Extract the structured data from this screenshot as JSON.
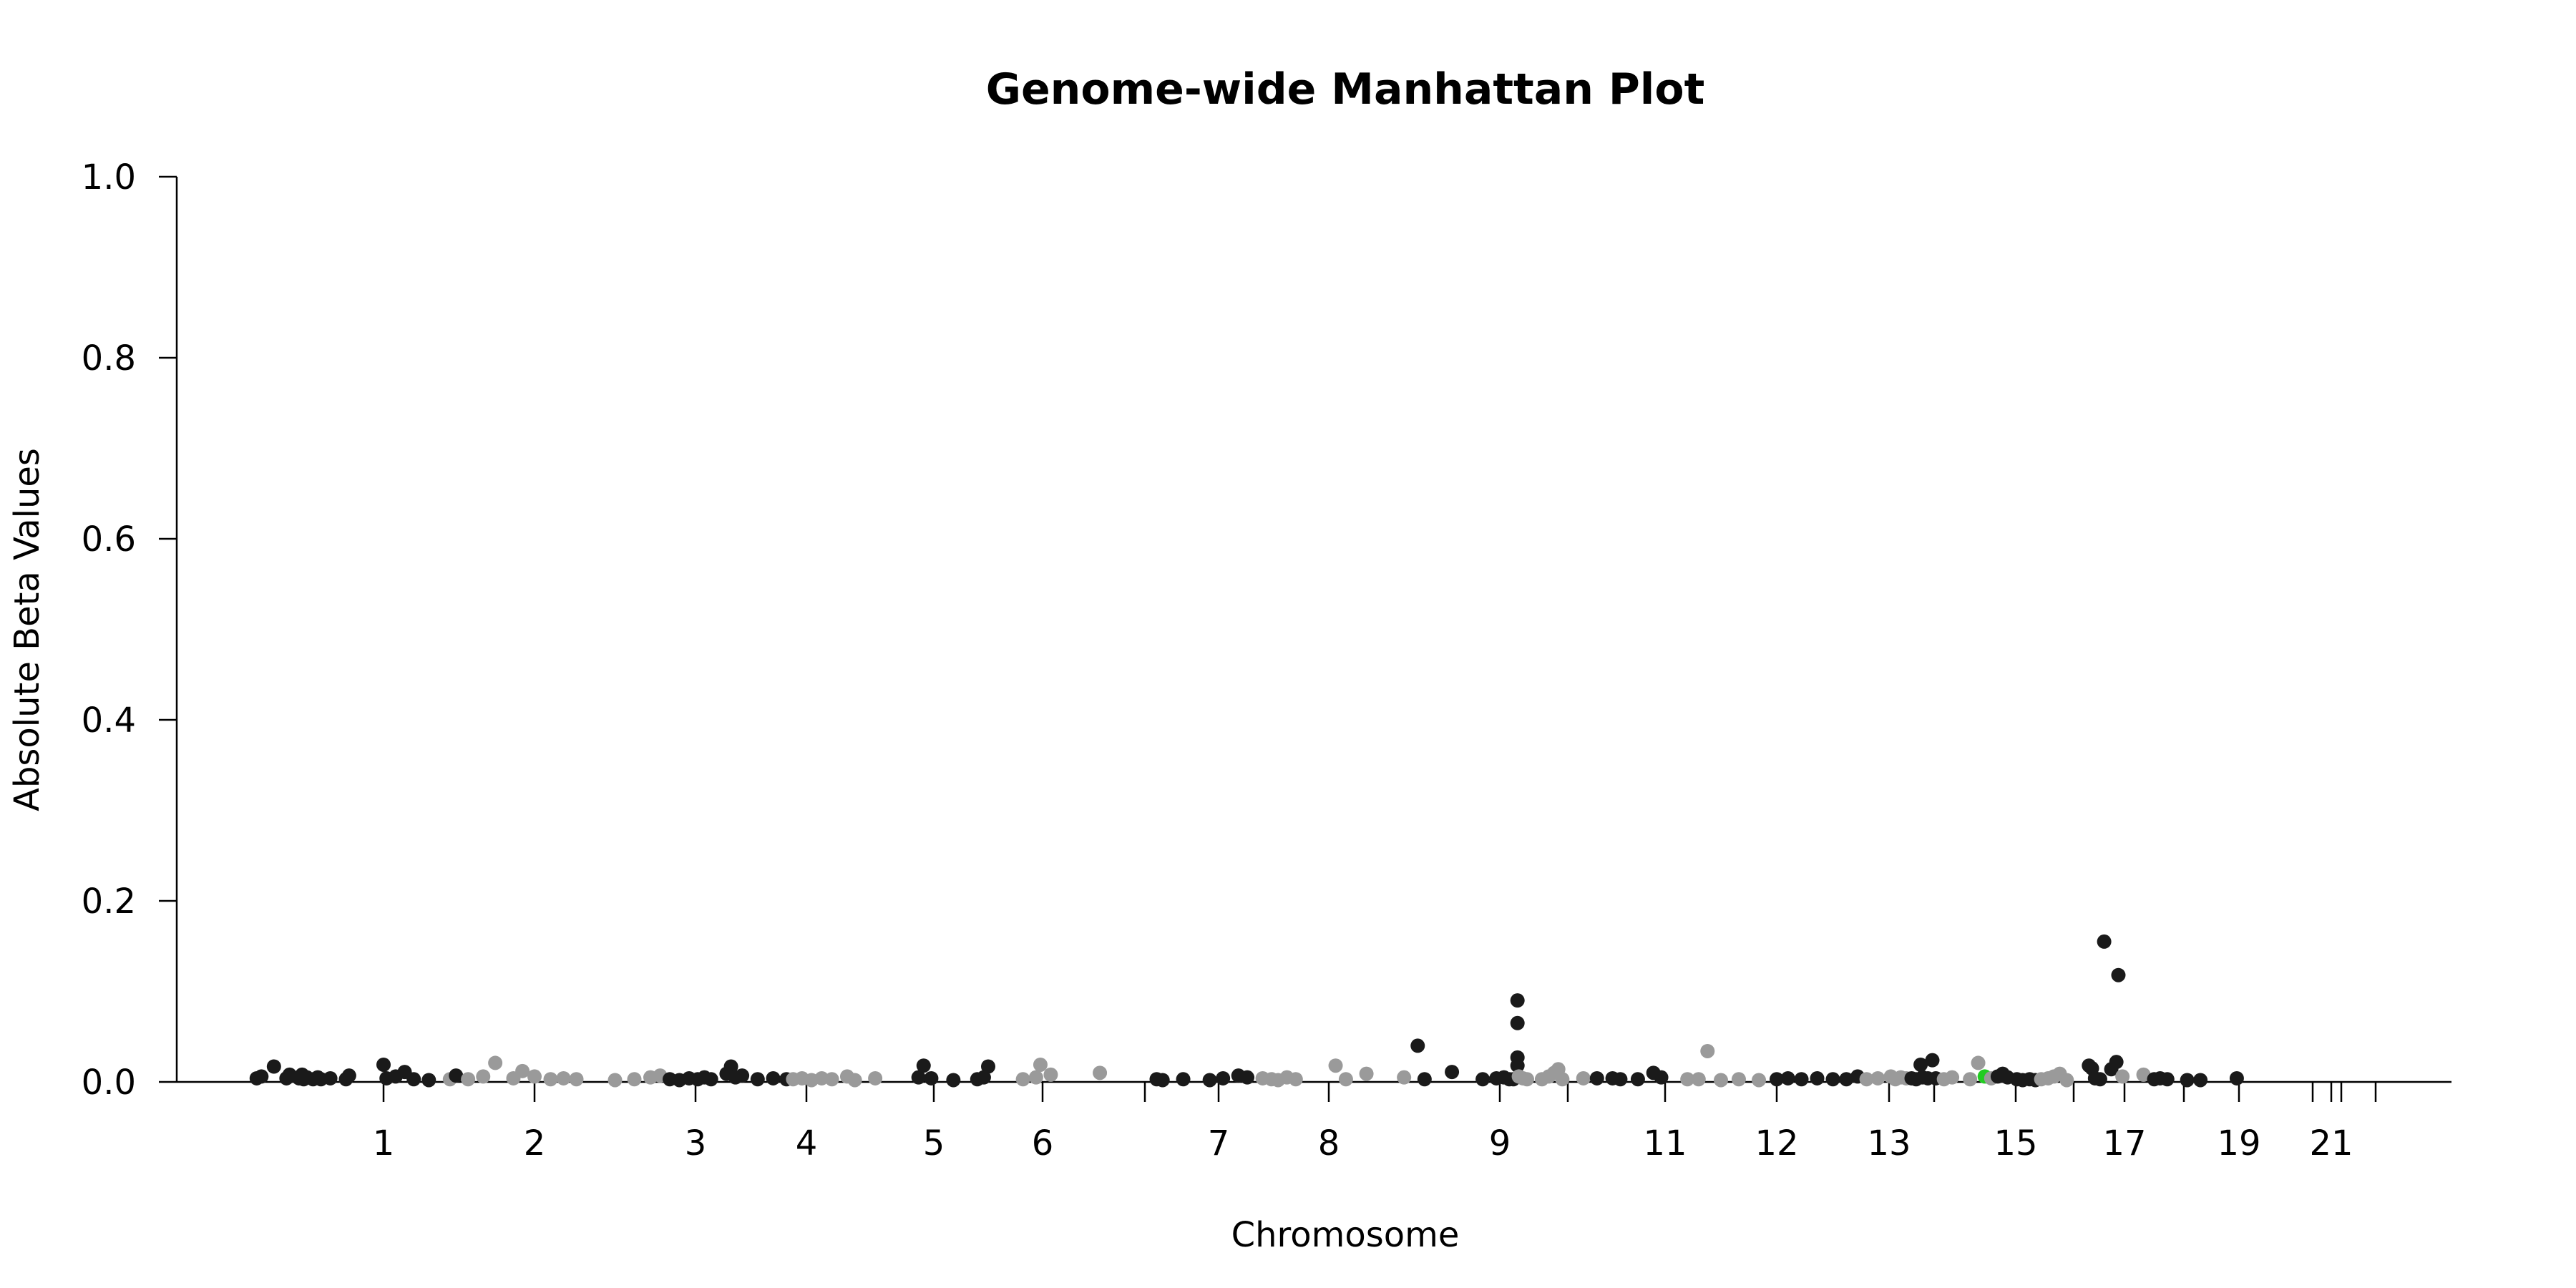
{
  "chart_data": {
    "type": "scatter",
    "title": "Genome-wide Manhattan Plot",
    "xlabel": "Chromosome",
    "ylabel": "Absolute Beta Values",
    "ylim": [
      0,
      1.0
    ],
    "y_ticks": [
      "0.0",
      "0.2",
      "0.4",
      "0.6",
      "0.8",
      "1.0"
    ],
    "x_ticks": [
      {
        "label": "1",
        "pos": 1
      },
      {
        "label": "2",
        "pos": 2
      },
      {
        "label": "3",
        "pos": 3
      },
      {
        "label": "4",
        "pos": 4
      },
      {
        "label": "5",
        "pos": 5
      },
      {
        "label": "6",
        "pos": 6
      },
      {
        "label": "",
        "pos": 6.5
      },
      {
        "label": "7",
        "pos": 7
      },
      {
        "label": "8",
        "pos": 8
      },
      {
        "label": "9",
        "pos": 9
      },
      {
        "label": "",
        "pos": 10
      },
      {
        "label": "11",
        "pos": 11
      },
      {
        "label": "12",
        "pos": 12
      },
      {
        "label": "13",
        "pos": 13
      },
      {
        "label": "",
        "pos": 14
      },
      {
        "label": "15",
        "pos": 15
      },
      {
        "label": "",
        "pos": 16
      },
      {
        "label": "17",
        "pos": 17
      },
      {
        "label": "",
        "pos": 18
      },
      {
        "label": "19",
        "pos": 19
      },
      {
        "label": "",
        "pos": 20
      },
      {
        "label": "21",
        "pos": 21
      },
      {
        "label": "",
        "pos": 22
      },
      {
        "label": "",
        "pos": 23
      }
    ],
    "grid": false,
    "colors": {
      "dark": "#1a1a1a",
      "light": "#9a9a9a",
      "highlight": "#22cc22"
    },
    "points": [
      {
        "x": -0.62,
        "y": 0.004,
        "c": "dark"
      },
      {
        "x": -0.56,
        "y": 0.006,
        "c": "dark"
      },
      {
        "x": -0.4,
        "y": 0.017,
        "c": "dark"
      },
      {
        "x": -0.24,
        "y": 0.004,
        "c": "dark"
      },
      {
        "x": -0.2,
        "y": 0.008,
        "c": "dark"
      },
      {
        "x": -0.08,
        "y": 0.004,
        "c": "dark"
      },
      {
        "x": -0.04,
        "y": 0.008,
        "c": "dark"
      },
      {
        "x": -0.02,
        "y": 0.003,
        "c": "dark"
      },
      {
        "x": 0.02,
        "y": 0.005,
        "c": "dark"
      },
      {
        "x": 0.1,
        "y": 0.003,
        "c": "dark"
      },
      {
        "x": 0.16,
        "y": 0.005,
        "c": "dark"
      },
      {
        "x": 0.2,
        "y": 0.003,
        "c": "dark"
      },
      {
        "x": 0.32,
        "y": 0.004,
        "c": "dark"
      },
      {
        "x": 0.52,
        "y": 0.003,
        "c": "dark"
      },
      {
        "x": 0.56,
        "y": 0.007,
        "c": "dark"
      },
      {
        "x": 1.0,
        "y": 0.019,
        "c": "dark"
      },
      {
        "x": 1.02,
        "y": 0.004,
        "c": "dark"
      },
      {
        "x": 1.08,
        "y": 0.006,
        "c": "dark"
      },
      {
        "x": 1.14,
        "y": 0.011,
        "c": "dark"
      },
      {
        "x": 1.2,
        "y": 0.003,
        "c": "dark"
      },
      {
        "x": 1.3,
        "y": 0.002,
        "c": "dark"
      },
      {
        "x": 1.44,
        "y": 0.003,
        "c": "light"
      },
      {
        "x": 1.48,
        "y": 0.007,
        "c": "dark"
      },
      {
        "x": 1.56,
        "y": 0.003,
        "c": "light"
      },
      {
        "x": 1.66,
        "y": 0.006,
        "c": "light"
      },
      {
        "x": 1.74,
        "y": 0.021,
        "c": "light"
      },
      {
        "x": 1.86,
        "y": 0.004,
        "c": "light"
      },
      {
        "x": 1.92,
        "y": 0.012,
        "c": "light"
      },
      {
        "x": 2.0,
        "y": 0.006,
        "c": "light"
      },
      {
        "x": 2.1,
        "y": 0.003,
        "c": "light"
      },
      {
        "x": 2.18,
        "y": 0.004,
        "c": "light"
      },
      {
        "x": 2.26,
        "y": 0.003,
        "c": "light"
      },
      {
        "x": 2.5,
        "y": 0.002,
        "c": "light"
      },
      {
        "x": 2.62,
        "y": 0.003,
        "c": "light"
      },
      {
        "x": 2.72,
        "y": 0.005,
        "c": "light"
      },
      {
        "x": 2.78,
        "y": 0.007,
        "c": "light"
      },
      {
        "x": 2.84,
        "y": 0.003,
        "c": "dark"
      },
      {
        "x": 2.9,
        "y": 0.002,
        "c": "dark"
      },
      {
        "x": 2.96,
        "y": 0.004,
        "c": "dark"
      },
      {
        "x": 3.02,
        "y": 0.003,
        "c": "dark"
      },
      {
        "x": 3.08,
        "y": 0.005,
        "c": "dark"
      },
      {
        "x": 3.14,
        "y": 0.003,
        "c": "dark"
      },
      {
        "x": 3.28,
        "y": 0.009,
        "c": "dark"
      },
      {
        "x": 3.32,
        "y": 0.017,
        "c": "dark"
      },
      {
        "x": 3.36,
        "y": 0.005,
        "c": "dark"
      },
      {
        "x": 3.42,
        "y": 0.007,
        "c": "dark"
      },
      {
        "x": 3.56,
        "y": 0.003,
        "c": "dark"
      },
      {
        "x": 3.7,
        "y": 0.004,
        "c": "dark"
      },
      {
        "x": 3.82,
        "y": 0.003,
        "c": "dark"
      },
      {
        "x": 3.88,
        "y": 0.003,
        "c": "light"
      },
      {
        "x": 3.96,
        "y": 0.004,
        "c": "light"
      },
      {
        "x": 4.04,
        "y": 0.002,
        "c": "light"
      },
      {
        "x": 4.12,
        "y": 0.004,
        "c": "light"
      },
      {
        "x": 4.2,
        "y": 0.003,
        "c": "light"
      },
      {
        "x": 4.32,
        "y": 0.006,
        "c": "light"
      },
      {
        "x": 4.38,
        "y": 0.002,
        "c": "light"
      },
      {
        "x": 4.54,
        "y": 0.004,
        "c": "light"
      },
      {
        "x": 4.88,
        "y": 0.005,
        "c": "dark"
      },
      {
        "x": 4.92,
        "y": 0.018,
        "c": "dark"
      },
      {
        "x": 4.98,
        "y": 0.004,
        "c": "dark"
      },
      {
        "x": 5.18,
        "y": 0.002,
        "c": "dark"
      },
      {
        "x": 5.4,
        "y": 0.003,
        "c": "dark"
      },
      {
        "x": 5.46,
        "y": 0.005,
        "c": "dark"
      },
      {
        "x": 5.5,
        "y": 0.017,
        "c": "dark"
      },
      {
        "x": 5.82,
        "y": 0.003,
        "c": "light"
      },
      {
        "x": 5.94,
        "y": 0.005,
        "c": "light"
      },
      {
        "x": 5.98,
        "y": 0.019,
        "c": "light"
      },
      {
        "x": 6.04,
        "y": 0.008,
        "c": "light"
      },
      {
        "x": 6.28,
        "y": 0.01,
        "c": "light"
      },
      {
        "x": 6.58,
        "y": 0.003,
        "c": "dark"
      },
      {
        "x": 6.62,
        "y": 0.002,
        "c": "dark"
      },
      {
        "x": 6.76,
        "y": 0.003,
        "c": "dark"
      },
      {
        "x": 6.94,
        "y": 0.002,
        "c": "dark"
      },
      {
        "x": 7.04,
        "y": 0.004,
        "c": "dark"
      },
      {
        "x": 7.18,
        "y": 0.007,
        "c": "dark"
      },
      {
        "x": 7.26,
        "y": 0.005,
        "c": "dark"
      },
      {
        "x": 7.4,
        "y": 0.004,
        "c": "light"
      },
      {
        "x": 7.48,
        "y": 0.003,
        "c": "light"
      },
      {
        "x": 7.54,
        "y": 0.002,
        "c": "light"
      },
      {
        "x": 7.62,
        "y": 0.005,
        "c": "light"
      },
      {
        "x": 7.7,
        "y": 0.003,
        "c": "light"
      },
      {
        "x": 8.04,
        "y": 0.018,
        "c": "light"
      },
      {
        "x": 8.1,
        "y": 0.003,
        "c": "light"
      },
      {
        "x": 8.22,
        "y": 0.009,
        "c": "light"
      },
      {
        "x": 8.44,
        "y": 0.005,
        "c": "light"
      },
      {
        "x": 8.52,
        "y": 0.04,
        "c": "dark"
      },
      {
        "x": 8.56,
        "y": 0.003,
        "c": "dark"
      },
      {
        "x": 8.72,
        "y": 0.011,
        "c": "dark"
      },
      {
        "x": 8.9,
        "y": 0.003,
        "c": "dark"
      },
      {
        "x": 8.98,
        "y": 0.004,
        "c": "dark"
      },
      {
        "x": 9.06,
        "y": 0.005,
        "c": "dark"
      },
      {
        "x": 9.14,
        "y": 0.003,
        "c": "dark"
      },
      {
        "x": 9.2,
        "y": 0.003,
        "c": "dark"
      },
      {
        "x": 9.26,
        "y": 0.09,
        "c": "dark"
      },
      {
        "x": 9.26,
        "y": 0.065,
        "c": "dark"
      },
      {
        "x": 9.26,
        "y": 0.027,
        "c": "dark"
      },
      {
        "x": 9.26,
        "y": 0.018,
        "c": "dark"
      },
      {
        "x": 9.28,
        "y": 0.006,
        "c": "light"
      },
      {
        "x": 9.34,
        "y": 0.004,
        "c": "light"
      },
      {
        "x": 9.4,
        "y": 0.003,
        "c": "light"
      },
      {
        "x": 9.62,
        "y": 0.003,
        "c": "light"
      },
      {
        "x": 9.72,
        "y": 0.006,
        "c": "light"
      },
      {
        "x": 9.8,
        "y": 0.01,
        "c": "light"
      },
      {
        "x": 9.86,
        "y": 0.014,
        "c": "light"
      },
      {
        "x": 9.92,
        "y": 0.003,
        "c": "light"
      },
      {
        "x": 10.16,
        "y": 0.004,
        "c": "light"
      },
      {
        "x": 10.3,
        "y": 0.004,
        "c": "dark"
      },
      {
        "x": 10.46,
        "y": 0.004,
        "c": "dark"
      },
      {
        "x": 10.54,
        "y": 0.003,
        "c": "dark"
      },
      {
        "x": 10.72,
        "y": 0.003,
        "c": "dark"
      },
      {
        "x": 10.88,
        "y": 0.01,
        "c": "dark"
      },
      {
        "x": 10.96,
        "y": 0.005,
        "c": "dark"
      },
      {
        "x": 11.2,
        "y": 0.003,
        "c": "light"
      },
      {
        "x": 11.3,
        "y": 0.003,
        "c": "light"
      },
      {
        "x": 11.38,
        "y": 0.034,
        "c": "light"
      },
      {
        "x": 11.5,
        "y": 0.002,
        "c": "light"
      },
      {
        "x": 11.66,
        "y": 0.003,
        "c": "light"
      },
      {
        "x": 11.84,
        "y": 0.002,
        "c": "light"
      },
      {
        "x": 12.0,
        "y": 0.003,
        "c": "dark"
      },
      {
        "x": 12.1,
        "y": 0.004,
        "c": "dark"
      },
      {
        "x": 12.22,
        "y": 0.003,
        "c": "dark"
      },
      {
        "x": 12.36,
        "y": 0.004,
        "c": "dark"
      },
      {
        "x": 12.5,
        "y": 0.003,
        "c": "dark"
      },
      {
        "x": 12.62,
        "y": 0.003,
        "c": "dark"
      },
      {
        "x": 12.72,
        "y": 0.006,
        "c": "dark"
      },
      {
        "x": 12.8,
        "y": 0.003,
        "c": "light"
      },
      {
        "x": 12.9,
        "y": 0.004,
        "c": "light"
      },
      {
        "x": 13.04,
        "y": 0.006,
        "c": "light"
      },
      {
        "x": 13.14,
        "y": 0.003,
        "c": "light"
      },
      {
        "x": 13.26,
        "y": 0.005,
        "c": "light"
      },
      {
        "x": 13.38,
        "y": 0.004,
        "c": "light"
      },
      {
        "x": 13.5,
        "y": 0.004,
        "c": "dark"
      },
      {
        "x": 13.6,
        "y": 0.003,
        "c": "dark"
      },
      {
        "x": 13.7,
        "y": 0.019,
        "c": "dark"
      },
      {
        "x": 13.74,
        "y": 0.005,
        "c": "dark"
      },
      {
        "x": 13.86,
        "y": 0.004,
        "c": "dark"
      },
      {
        "x": 13.96,
        "y": 0.024,
        "c": "dark"
      },
      {
        "x": 14.02,
        "y": 0.004,
        "c": "dark"
      },
      {
        "x": 14.12,
        "y": 0.003,
        "c": "light"
      },
      {
        "x": 14.22,
        "y": 0.005,
        "c": "light"
      },
      {
        "x": 14.44,
        "y": 0.003,
        "c": "light"
      },
      {
        "x": 14.54,
        "y": 0.021,
        "c": "light"
      },
      {
        "x": 14.62,
        "y": 0.006,
        "c": "highlight"
      },
      {
        "x": 14.7,
        "y": 0.004,
        "c": "light"
      },
      {
        "x": 14.78,
        "y": 0.006,
        "c": "dark"
      },
      {
        "x": 14.84,
        "y": 0.009,
        "c": "dark"
      },
      {
        "x": 14.9,
        "y": 0.005,
        "c": "dark"
      },
      {
        "x": 15.02,
        "y": 0.003,
        "c": "dark"
      },
      {
        "x": 15.12,
        "y": 0.002,
        "c": "dark"
      },
      {
        "x": 15.24,
        "y": 0.003,
        "c": "dark"
      },
      {
        "x": 15.34,
        "y": 0.002,
        "c": "dark"
      },
      {
        "x": 15.44,
        "y": 0.003,
        "c": "light"
      },
      {
        "x": 15.56,
        "y": 0.004,
        "c": "light"
      },
      {
        "x": 15.66,
        "y": 0.006,
        "c": "light"
      },
      {
        "x": 15.76,
        "y": 0.009,
        "c": "light"
      },
      {
        "x": 15.88,
        "y": 0.002,
        "c": "light"
      },
      {
        "x": 16.3,
        "y": 0.018,
        "c": "dark"
      },
      {
        "x": 16.36,
        "y": 0.015,
        "c": "dark"
      },
      {
        "x": 16.42,
        "y": 0.004,
        "c": "dark"
      },
      {
        "x": 16.52,
        "y": 0.003,
        "c": "dark"
      },
      {
        "x": 16.6,
        "y": 0.155,
        "c": "dark"
      },
      {
        "x": 16.74,
        "y": 0.014,
        "c": "dark"
      },
      {
        "x": 16.84,
        "y": 0.022,
        "c": "dark"
      },
      {
        "x": 16.88,
        "y": 0.118,
        "c": "dark"
      },
      {
        "x": 16.96,
        "y": 0.006,
        "c": "light"
      },
      {
        "x": 17.32,
        "y": 0.008,
        "c": "light"
      },
      {
        "x": 17.5,
        "y": 0.003,
        "c": "dark"
      },
      {
        "x": 17.6,
        "y": 0.004,
        "c": "dark"
      },
      {
        "x": 17.72,
        "y": 0.003,
        "c": "dark"
      },
      {
        "x": 18.06,
        "y": 0.002,
        "c": "dark"
      },
      {
        "x": 18.3,
        "y": 0.002,
        "c": "dark"
      },
      {
        "x": 18.96,
        "y": 0.004,
        "c": "dark"
      }
    ]
  }
}
